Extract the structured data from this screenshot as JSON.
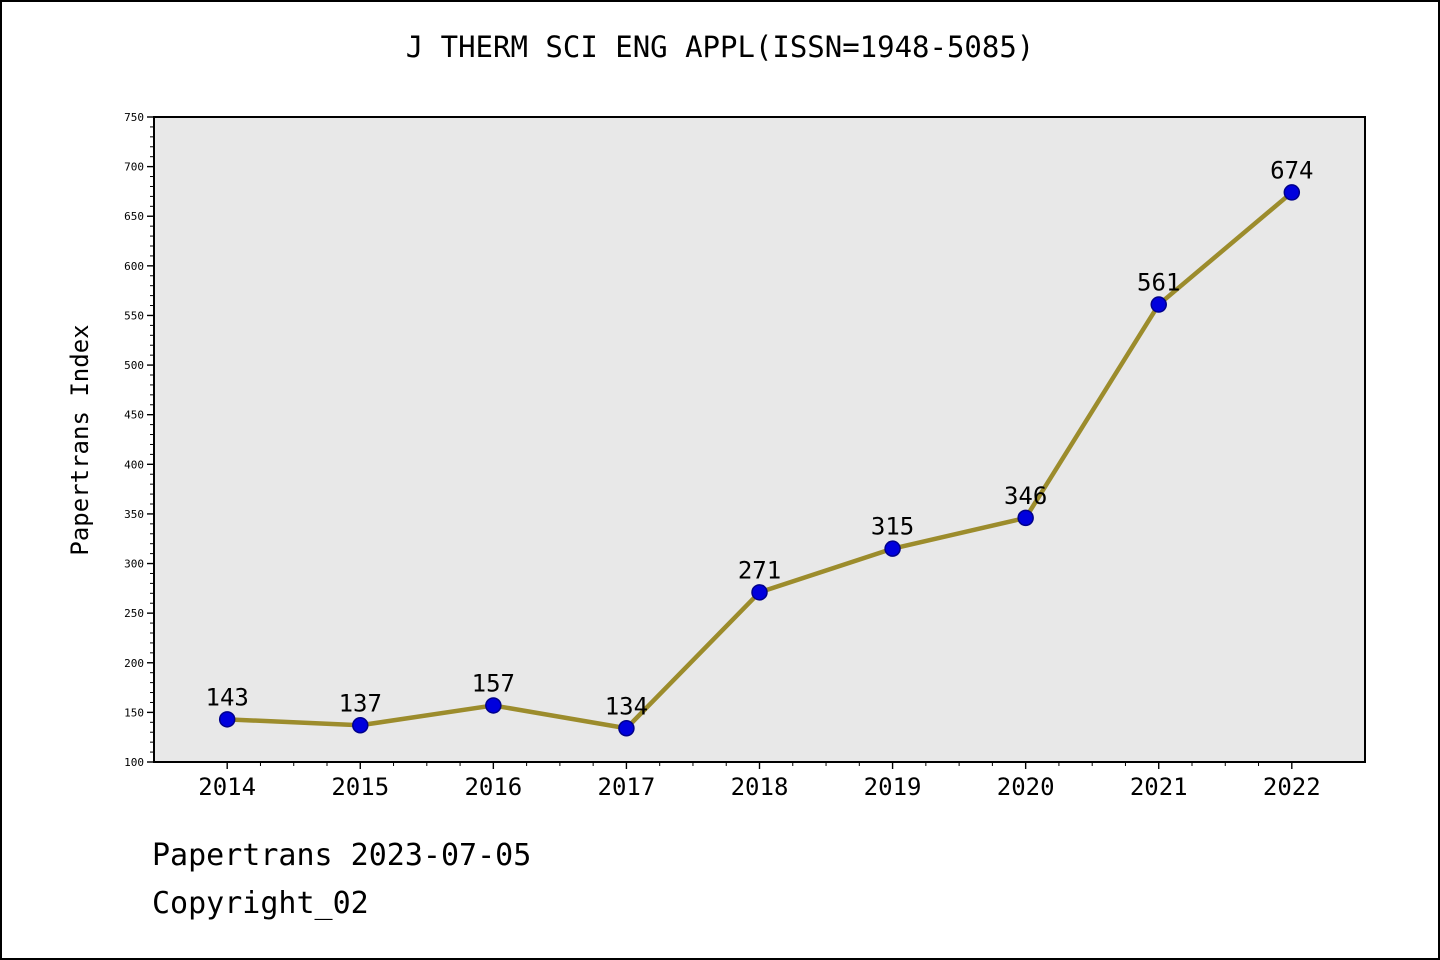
{
  "title": "J THERM SCI ENG APPL(ISSN=1948-5085)",
  "footer": {
    "line1": "Papertrans 2023-07-05",
    "line2": "Copyright_02"
  },
  "chart_data": {
    "type": "line",
    "title": "J THERM SCI ENG APPL(ISSN=1948-5085)",
    "categories": [
      "2014",
      "2015",
      "2016",
      "2017",
      "2018",
      "2019",
      "2020",
      "2021",
      "2022"
    ],
    "values": [
      143,
      137,
      157,
      134,
      271,
      315,
      346,
      561,
      674
    ],
    "xlabel": "",
    "ylabel": "Papertrans Index",
    "ylim": [
      100,
      750
    ],
    "ytick_major": 50,
    "ytick_minor": 10,
    "grid": false,
    "legend": "none",
    "colors": {
      "line": "#9c8c2c",
      "marker_fill": "#0000dd",
      "marker_edge": "#00008b",
      "plot_background": "#e8e8e8",
      "frame": "#000000"
    }
  }
}
